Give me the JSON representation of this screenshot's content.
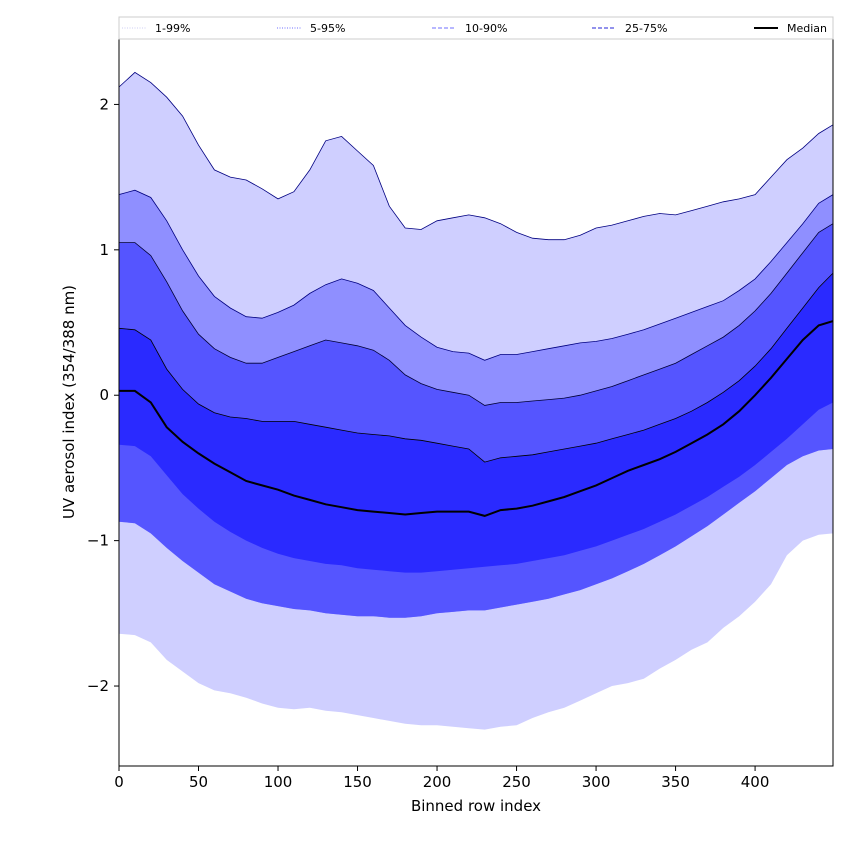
{
  "chart_data": {
    "type": "area",
    "xlabel": "Binned row index",
    "ylabel": "UV aerosol index (354/388 nm)",
    "xlim": [
      0,
      449
    ],
    "ylim": [
      -2.55,
      2.45
    ],
    "xticks": [
      0,
      50,
      100,
      150,
      200,
      250,
      300,
      350,
      400
    ],
    "yticks": [
      2,
      1,
      0,
      -1,
      -2
    ],
    "ytick_labels": [
      "2",
      "1",
      "0",
      "−1",
      "−2"
    ],
    "legend_position": "top",
    "legend": [
      {
        "label": "1-99%",
        "color": "#d7d7f5",
        "style": "dotted"
      },
      {
        "label": "5-95%",
        "color": "#8c8cff",
        "style": "dotted"
      },
      {
        "label": "10-90%",
        "color": "#8c8cff",
        "style": "dashed"
      },
      {
        "label": "25-75%",
        "color": "#5050e0",
        "style": "dashed"
      },
      {
        "label": "Median",
        "color": "#000000",
        "style": "solid"
      }
    ],
    "x": [
      0,
      10,
      20,
      30,
      40,
      50,
      60,
      70,
      80,
      90,
      100,
      110,
      120,
      130,
      140,
      150,
      160,
      170,
      180,
      190,
      200,
      210,
      220,
      230,
      240,
      250,
      260,
      270,
      280,
      290,
      300,
      310,
      320,
      330,
      340,
      350,
      360,
      370,
      380,
      390,
      400,
      410,
      420,
      430,
      440,
      449
    ],
    "bands": [
      {
        "name": "1-99%",
        "color": "#cfcfff",
        "edge": "#000080",
        "upper": [
          2.12,
          2.22,
          2.15,
          2.05,
          1.92,
          1.72,
          1.55,
          1.5,
          1.48,
          1.42,
          1.35,
          1.4,
          1.55,
          1.75,
          1.78,
          1.68,
          1.58,
          1.3,
          1.15,
          1.14,
          1.2,
          1.22,
          1.24,
          1.22,
          1.18,
          1.12,
          1.08,
          1.07,
          1.07,
          1.1,
          1.15,
          1.17,
          1.2,
          1.23,
          1.25,
          1.24,
          1.27,
          1.3,
          1.33,
          1.35,
          1.38,
          1.5,
          1.62,
          1.7,
          1.8,
          1.86
        ],
        "lower": [
          -1.64,
          -1.65,
          -1.7,
          -1.82,
          -1.9,
          -1.98,
          -2.03,
          -2.05,
          -2.08,
          -2.12,
          -2.15,
          -2.16,
          -2.15,
          -2.17,
          -2.18,
          -2.2,
          -2.22,
          -2.24,
          -2.26,
          -2.27,
          -2.27,
          -2.28,
          -2.29,
          -2.3,
          -2.28,
          -2.27,
          -2.22,
          -2.18,
          -2.15,
          -2.1,
          -2.05,
          -2.0,
          -1.98,
          -1.95,
          -1.88,
          -1.82,
          -1.75,
          -1.7,
          -1.6,
          -1.52,
          -1.42,
          -1.3,
          -1.1,
          -1.0,
          -0.96,
          -0.95
        ]
      },
      {
        "name": "5-95%",
        "color": "#8f8fff",
        "edge": "#000080",
        "upper": [
          1.38,
          1.41,
          1.36,
          1.2,
          1.0,
          0.82,
          0.68,
          0.6,
          0.54,
          0.53,
          0.57,
          0.62,
          0.7,
          0.76,
          0.8,
          0.77,
          0.72,
          0.6,
          0.48,
          0.4,
          0.33,
          0.3,
          0.29,
          0.24,
          0.28,
          0.28,
          0.3,
          0.32,
          0.34,
          0.36,
          0.37,
          0.39,
          0.42,
          0.45,
          0.49,
          0.53,
          0.57,
          0.61,
          0.65,
          0.72,
          0.8,
          0.92,
          1.05,
          1.18,
          1.32,
          1.38
        ]
      },
      {
        "name": "10-90%",
        "color": "#5555ff",
        "edge": "#000033",
        "upper": [
          1.05,
          1.05,
          0.96,
          0.78,
          0.58,
          0.42,
          0.32,
          0.26,
          0.22,
          0.22,
          0.26,
          0.3,
          0.34,
          0.38,
          0.36,
          0.34,
          0.31,
          0.24,
          0.14,
          0.08,
          0.04,
          0.02,
          0.0,
          -0.07,
          -0.05,
          -0.05,
          -0.04,
          -0.03,
          -0.02,
          0.0,
          0.03,
          0.06,
          0.1,
          0.14,
          0.18,
          0.22,
          0.28,
          0.34,
          0.4,
          0.48,
          0.58,
          0.7,
          0.84,
          0.98,
          1.12,
          1.18
        ],
        "lower": [
          -0.87,
          -0.88,
          -0.95,
          -1.05,
          -1.14,
          -1.22,
          -1.3,
          -1.35,
          -1.4,
          -1.43,
          -1.45,
          -1.47,
          -1.48,
          -1.5,
          -1.51,
          -1.52,
          -1.52,
          -1.53,
          -1.53,
          -1.52,
          -1.5,
          -1.49,
          -1.48,
          -1.48,
          -1.46,
          -1.44,
          -1.42,
          -1.4,
          -1.37,
          -1.34,
          -1.3,
          -1.26,
          -1.21,
          -1.16,
          -1.1,
          -1.04,
          -0.97,
          -0.9,
          -0.82,
          -0.74,
          -0.66,
          -0.57,
          -0.48,
          -0.42,
          -0.38,
          -0.37
        ]
      },
      {
        "name": "25-75%",
        "color": "#2a2aff",
        "edge": "#000000",
        "upper": [
          0.46,
          0.45,
          0.38,
          0.18,
          0.04,
          -0.06,
          -0.12,
          -0.15,
          -0.16,
          -0.18,
          -0.18,
          -0.18,
          -0.2,
          -0.22,
          -0.24,
          -0.26,
          -0.27,
          -0.28,
          -0.3,
          -0.31,
          -0.33,
          -0.35,
          -0.37,
          -0.46,
          -0.43,
          -0.42,
          -0.41,
          -0.39,
          -0.37,
          -0.35,
          -0.33,
          -0.3,
          -0.27,
          -0.24,
          -0.2,
          -0.16,
          -0.11,
          -0.05,
          0.02,
          0.1,
          0.2,
          0.32,
          0.46,
          0.6,
          0.74,
          0.84
        ],
        "lower": [
          -0.34,
          -0.35,
          -0.42,
          -0.55,
          -0.68,
          -0.78,
          -0.87,
          -0.94,
          -1.0,
          -1.05,
          -1.09,
          -1.12,
          -1.14,
          -1.16,
          -1.17,
          -1.19,
          -1.2,
          -1.21,
          -1.22,
          -1.22,
          -1.21,
          -1.2,
          -1.19,
          -1.18,
          -1.17,
          -1.16,
          -1.14,
          -1.12,
          -1.1,
          -1.07,
          -1.04,
          -1.0,
          -0.96,
          -0.92,
          -0.87,
          -0.82,
          -0.76,
          -0.7,
          -0.63,
          -0.56,
          -0.48,
          -0.39,
          -0.3,
          -0.2,
          -0.1,
          -0.05
        ]
      }
    ],
    "series": [
      {
        "name": "Median",
        "color": "#000000",
        "values": [
          0.03,
          0.03,
          -0.05,
          -0.22,
          -0.32,
          -0.4,
          -0.47,
          -0.53,
          -0.59,
          -0.62,
          -0.65,
          -0.69,
          -0.72,
          -0.75,
          -0.77,
          -0.79,
          -0.8,
          -0.81,
          -0.82,
          -0.81,
          -0.8,
          -0.8,
          -0.8,
          -0.83,
          -0.79,
          -0.78,
          -0.76,
          -0.73,
          -0.7,
          -0.66,
          -0.62,
          -0.57,
          -0.52,
          -0.48,
          -0.44,
          -0.39,
          -0.33,
          -0.27,
          -0.2,
          -0.11,
          0.0,
          0.12,
          0.25,
          0.38,
          0.48,
          0.51
        ]
      }
    ]
  }
}
